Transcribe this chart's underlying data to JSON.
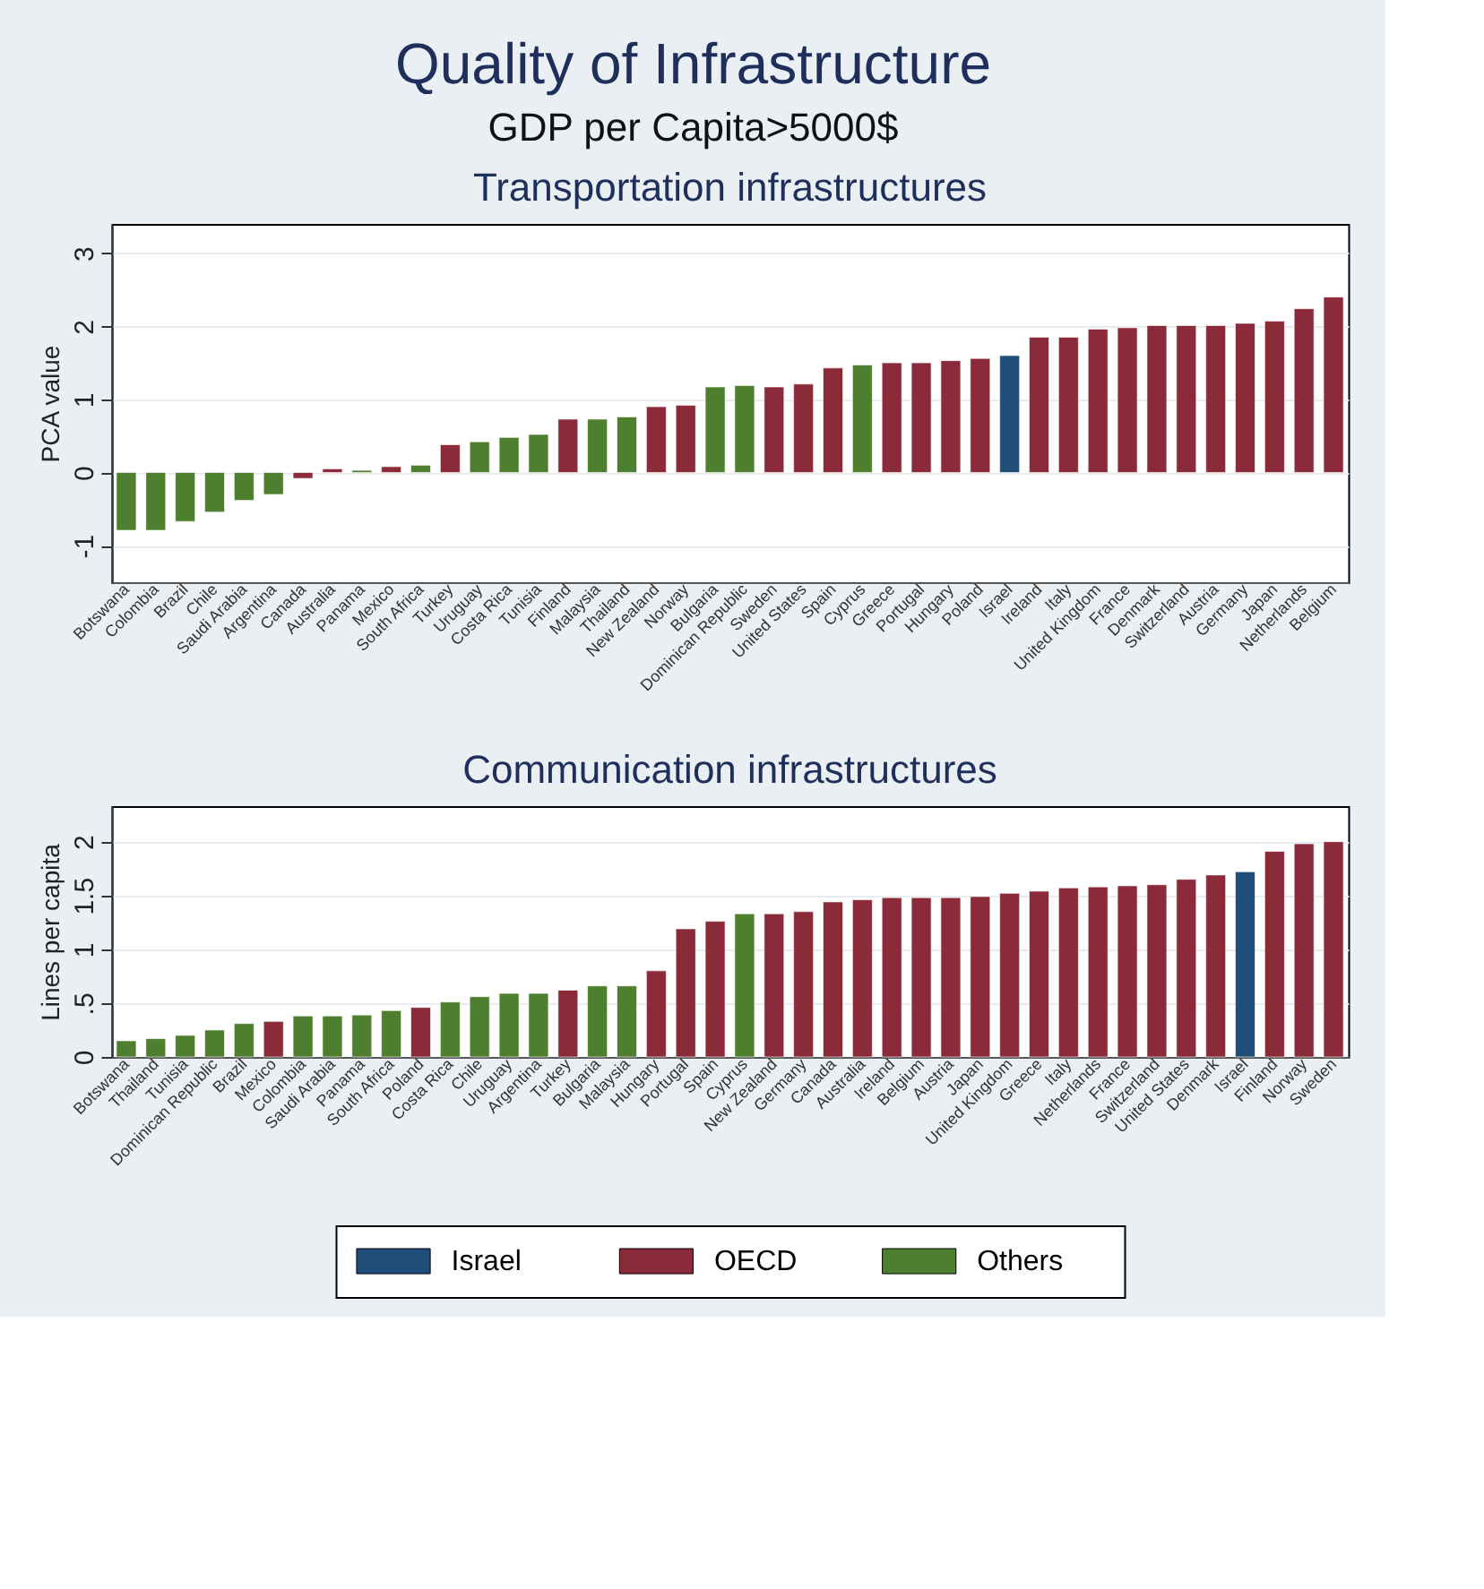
{
  "chart_data": [
    {
      "type": "bar",
      "title": "Quality of Infrastructure",
      "subtitle": "GDP per Capita>5000$",
      "annotations": [
        "Transportation infrastructures"
      ],
      "ylabel": "PCA value",
      "ylim": [
        -1.5,
        3.4
      ],
      "yticks": [
        -1,
        0,
        1,
        2,
        3
      ],
      "grid": "y",
      "legend": "bottom",
      "categories": [
        "Botswana",
        "Colombia",
        "Brazil",
        "Chile",
        "Saudi Arabia",
        "Argentina",
        "Canada",
        "Australia",
        "Panama",
        "Mexico",
        "South Africa",
        "Turkey",
        "Uruguay",
        "Costa Rica",
        "Tunisia",
        "Finland",
        "Malaysia",
        "Thailand",
        "New Zealand",
        "Norway",
        "Bulgaria",
        "Dominican Republic",
        "Sweden",
        "United States",
        "Spain",
        "Cyprus",
        "Greece",
        "Portugal",
        "Hungary",
        "Poland",
        "Israel",
        "Ireland",
        "Italy",
        "United Kingdom",
        "France",
        "Denmark",
        "Switzerland",
        "Austria",
        "Germany",
        "Japan",
        "Netherlands",
        "Belgium"
      ],
      "series": [
        {
          "name": "Israel",
          "color": "#1f4e79",
          "values": [
            null,
            null,
            null,
            null,
            null,
            null,
            null,
            null,
            null,
            null,
            null,
            null,
            null,
            null,
            null,
            null,
            null,
            null,
            null,
            null,
            null,
            null,
            null,
            null,
            null,
            null,
            null,
            null,
            null,
            null,
            1.6,
            null,
            null,
            null,
            null,
            null,
            null,
            null,
            null,
            null,
            null,
            null
          ]
        },
        {
          "name": "OECD",
          "color": "#8b2b3a",
          "values": [
            null,
            null,
            null,
            null,
            null,
            null,
            -0.08,
            0.05,
            null,
            0.08,
            null,
            0.38,
            null,
            null,
            null,
            0.73,
            null,
            null,
            0.9,
            0.92,
            null,
            null,
            1.17,
            1.21,
            1.43,
            null,
            1.5,
            1.5,
            1.53,
            1.56,
            null,
            1.85,
            1.85,
            1.96,
            1.98,
            2.01,
            2.01,
            2.01,
            2.04,
            2.07,
            2.24,
            2.4
          ]
        },
        {
          "name": "Others",
          "color": "#4e7f2e",
          "values": [
            -0.79,
            -0.79,
            -0.67,
            -0.54,
            -0.38,
            -0.3,
            null,
            null,
            0.03,
            null,
            0.1,
            null,
            0.42,
            0.48,
            0.52,
            null,
            0.73,
            0.76,
            null,
            null,
            1.17,
            1.19,
            null,
            null,
            null,
            1.47,
            null,
            null,
            null,
            null,
            null,
            null,
            null,
            null,
            null,
            null,
            null,
            null,
            null,
            null,
            null,
            null
          ]
        }
      ]
    },
    {
      "type": "bar",
      "title": "Communication infrastructures",
      "ylabel": "Lines per capita",
      "ylim": [
        0,
        2.33
      ],
      "yticks": [
        0,
        {
          "value": 0.5,
          "label": ".5"
        },
        1,
        1.5,
        2
      ],
      "grid": "y",
      "categories": [
        "Botswana",
        "Thailand",
        "Tunisia",
        "Dominican Republic",
        "Brazil",
        "Mexico",
        "Colombia",
        "Saudi Arabia",
        "Panama",
        "South Africa",
        "Poland",
        "Costa Rica",
        "Chile",
        "Uruguay",
        "Argentina",
        "Turkey",
        "Bulgaria",
        "Malaysia",
        "Hungary",
        "Portugal",
        "Spain",
        "Cyprus",
        "New Zealand",
        "Germany",
        "Canada",
        "Australia",
        "Ireland",
        "Belgium",
        "Austria",
        "Japan",
        "United Kingdom",
        "Greece",
        "Italy",
        "Netherlands",
        "France",
        "Switzerland",
        "United States",
        "Denmark",
        "Israel",
        "Finland",
        "Norway",
        "Sweden"
      ],
      "series": [
        {
          "color": "#1f4e79",
          "values": [
            null,
            null,
            null,
            null,
            null,
            null,
            null,
            null,
            null,
            null,
            null,
            null,
            null,
            null,
            null,
            null,
            null,
            null,
            null,
            null,
            null,
            null,
            null,
            null,
            null,
            null,
            null,
            null,
            null,
            null,
            null,
            null,
            null,
            null,
            null,
            null,
            null,
            null,
            1.72,
            null,
            null,
            null
          ]
        },
        {
          "color": "#8b2b3a",
          "values": [
            null,
            null,
            null,
            null,
            null,
            0.33,
            null,
            null,
            null,
            null,
            0.46,
            null,
            null,
            null,
            null,
            0.62,
            null,
            null,
            0.8,
            1.19,
            1.26,
            null,
            1.33,
            1.35,
            1.44,
            1.46,
            1.48,
            1.48,
            1.48,
            1.49,
            1.52,
            1.54,
            1.57,
            1.58,
            1.59,
            1.6,
            1.65,
            1.69,
            null,
            1.91,
            1.98,
            2.0
          ]
        },
        {
          "color": "#4e7f2e",
          "values": [
            0.15,
            0.17,
            0.2,
            0.25,
            0.31,
            null,
            0.38,
            0.38,
            0.39,
            0.43,
            null,
            0.51,
            0.56,
            0.59,
            0.59,
            null,
            0.66,
            0.66,
            null,
            null,
            null,
            1.33,
            null,
            null,
            null,
            null,
            null,
            null,
            null,
            null,
            null,
            null,
            null,
            null,
            null,
            null,
            null,
            null,
            null,
            null,
            null,
            null
          ]
        }
      ]
    }
  ]
}
